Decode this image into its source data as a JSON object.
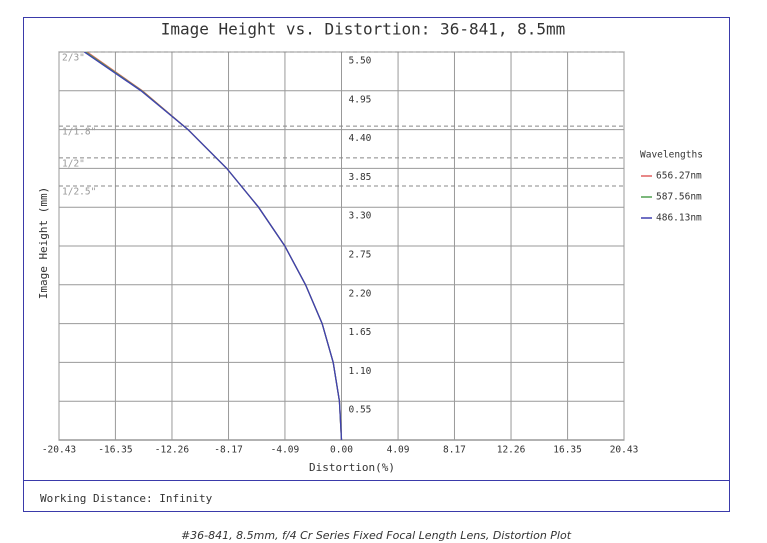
{
  "chart_data": {
    "type": "line",
    "title": "Image Height vs. Distortion: 36-841, 8.5mm",
    "x_label": "Distortion(%)",
    "y_label": "Image Height (mm)",
    "xlim": [
      -20.43,
      20.43
    ],
    "ylim": [
      0,
      5.5
    ],
    "xticks": [
      -20.43,
      -16.35,
      -12.26,
      -8.17,
      -4.09,
      {
        "value": 0,
        "label": "0.00"
      },
      4.09,
      8.17,
      12.26,
      16.35,
      20.43
    ],
    "yticks": [
      0.55,
      {
        "value": 1.1,
        "label": "1.10"
      },
      1.65,
      {
        "value": 2.2,
        "label": "2.20"
      },
      2.75,
      {
        "value": 3.3,
        "label": "3.30"
      },
      3.85,
      {
        "value": 4.4,
        "label": "4.40"
      },
      4.95,
      {
        "value": 5.5,
        "label": "5.50"
      }
    ],
    "grid": true,
    "legend_title": "Wavelengths",
    "legend_position": "right",
    "y": [
      0,
      0.55,
      1.1,
      1.65,
      2.2,
      2.75,
      3.3,
      3.85,
      4.4,
      4.95,
      5.5
    ],
    "series": [
      {
        "name": "656.27nm",
        "color": "#e06060",
        "x": [
          0,
          -0.15,
          -0.6,
          -1.4,
          -2.6,
          -4.1,
          -6.0,
          -8.3,
          -11.1,
          -14.4,
          -18.4
        ]
      },
      {
        "name": "587.56nm",
        "color": "#50a050",
        "x": [
          0,
          -0.15,
          -0.6,
          -1.4,
          -2.6,
          -4.1,
          -6.0,
          -8.3,
          -11.1,
          -14.45,
          -18.5
        ]
      },
      {
        "name": "486.13nm",
        "color": "#4040b0",
        "x": [
          0,
          -0.15,
          -0.6,
          -1.4,
          -2.6,
          -4.1,
          -6.0,
          -8.3,
          -11.1,
          -14.5,
          -18.6
        ]
      }
    ],
    "sensor_lines": [
      {
        "label": "2/3\"",
        "value": 5.5
      },
      {
        "label": "1/1.8\"",
        "value": 4.45
      },
      {
        "label": "1/2\"",
        "value": 4.0
      },
      {
        "label": "1/2.5\"",
        "value": 3.6
      }
    ],
    "footer": "Working Distance: Infinity",
    "caption": "#36-841, 8.5mm, f/4 Cr Series Fixed Focal Length Lens, Distortion Plot"
  }
}
